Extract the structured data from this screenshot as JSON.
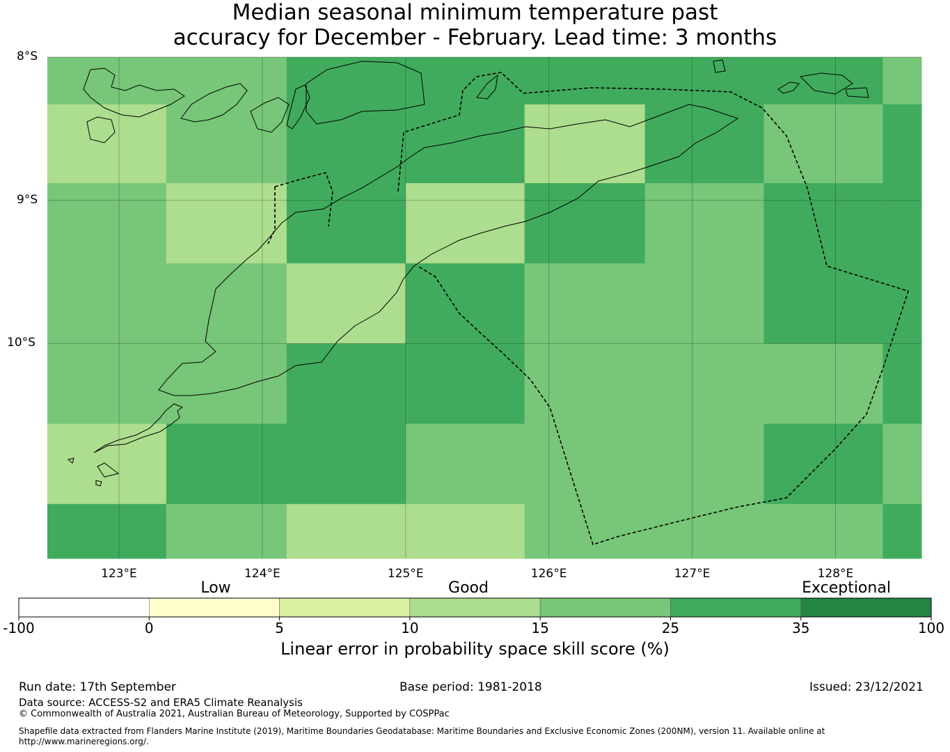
{
  "title": {
    "line1": "Median seasonal minimum temperature past",
    "line2": "accuracy for December - February. Lead time: 3 months"
  },
  "map": {
    "lat_range": [
      8.0,
      11.5
    ],
    "lon_range": [
      122.5,
      128.6
    ],
    "lat_ticks": [
      {
        "value": 8,
        "label": "8°S"
      },
      {
        "value": 9,
        "label": "9°S"
      },
      {
        "value": 10,
        "label": "10°S"
      }
    ],
    "lon_ticks": [
      {
        "value": 123,
        "label": "123°E"
      },
      {
        "value": 124,
        "label": "124°E"
      },
      {
        "value": 125,
        "label": "125°E"
      },
      {
        "value": 126,
        "label": "126°E"
      },
      {
        "value": 127,
        "label": "127°E"
      },
      {
        "value": 128,
        "label": "128°E"
      }
    ],
    "grid_cell_categories": [
      [
        4,
        4,
        5,
        5,
        5,
        5,
        5,
        4
      ],
      [
        3,
        4,
        5,
        5,
        3,
        5,
        4,
        5
      ],
      [
        4,
        3,
        5,
        3,
        5,
        4,
        5,
        5
      ],
      [
        4,
        4,
        3,
        5,
        4,
        4,
        5,
        5
      ],
      [
        4,
        4,
        5,
        5,
        4,
        4,
        4,
        5
      ],
      [
        3,
        5,
        5,
        4,
        4,
        4,
        5,
        4
      ],
      [
        5,
        4,
        3,
        3,
        4,
        4,
        4,
        5
      ]
    ],
    "grid_lat_edges": [
      8.0,
      8.33,
      8.88,
      9.44,
      10.0,
      10.56,
      11.12,
      11.5
    ],
    "grid_lon_edges": [
      122.5,
      123.33,
      124.17,
      125.0,
      125.83,
      126.67,
      127.5,
      128.33,
      128.6
    ]
  },
  "colorbar": {
    "title": "Linear error in probability space skill score (%)",
    "ticks": [
      "-100",
      "0",
      "5",
      "10",
      "15",
      "25",
      "35",
      "100"
    ],
    "colors": [
      "#ffffff",
      "#ffffcc",
      "#d9f0a3",
      "#addd8e",
      "#78c679",
      "#41ab5d",
      "#238443"
    ],
    "category_labels": [
      "Low",
      "Good",
      "Exceptional"
    ]
  },
  "footer": {
    "run_date": "Run date: 17th September",
    "base_period": "Base period: 1981-2018",
    "issued": "Issued: 23/12/2021",
    "data_source": "Data source: ACCESS-S2 and ERA5 Climate Reanalysis",
    "copyright": "© Commonwealth of Australia 2021, Australian Bureau of Meteorology, Supported by COSPPac",
    "shapefile_line1": "Shapefile data extracted from Flanders Marine Institute (2019), Maritime Boundaries Geodatabase: Maritime Boundaries and Exclusive Economic Zones (200NM), version 11. Available online at",
    "shapefile_line2": "http://www.marineregions.org/."
  }
}
